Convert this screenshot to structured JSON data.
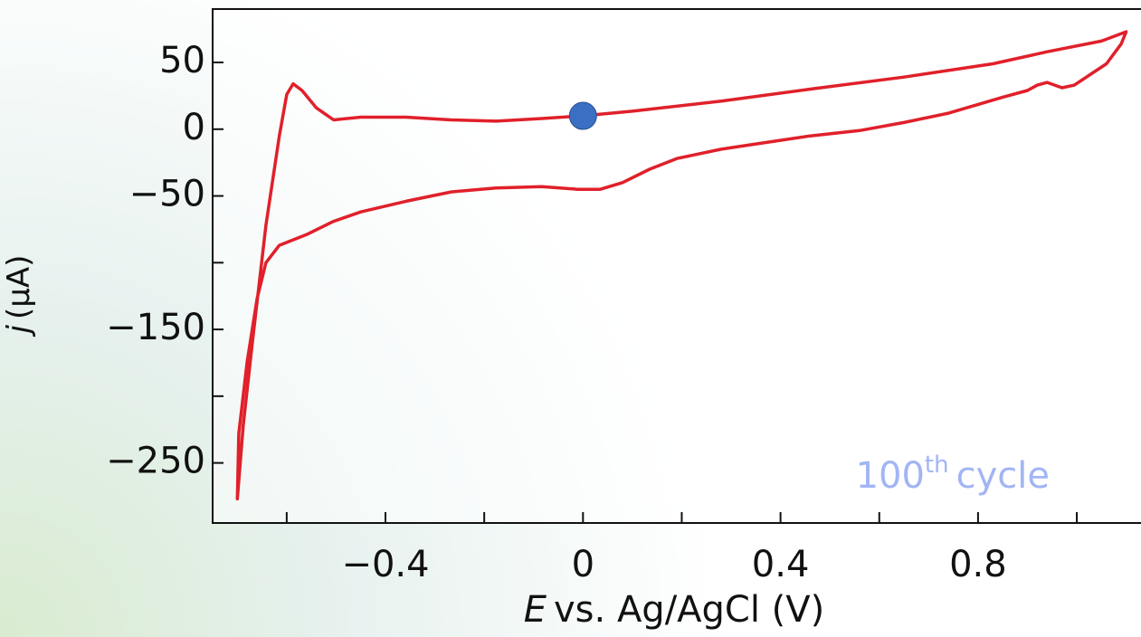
{
  "chart_data": {
    "type": "line",
    "xlabel": {
      "symbol": "E",
      "text": "vs. Ag/AgCl  (V)"
    },
    "ylabel": {
      "symbol": "j",
      "text": "(μA)"
    },
    "annotation": {
      "main": "100",
      "sup": "th",
      "text": "cycle",
      "color": "#2f5ce6"
    },
    "color": "#e0202a",
    "marker": {
      "x": 0,
      "y": 10,
      "color": "#3a6fc4"
    },
    "x": [
      0,
      0.1,
      0.28,
      0.46,
      0.65,
      0.83,
      0.94,
      1.05,
      1.1,
      1.09,
      1.06,
      0.995,
      0.97,
      0.94,
      0.92,
      0.9,
      0.85,
      0.74,
      0.65,
      0.56,
      0.46,
      0.37,
      0.28,
      0.19,
      0.135,
      0.08,
      0.035,
      -0.011,
      -0.084,
      -0.176,
      -0.267,
      -0.358,
      -0.45,
      -0.505,
      -0.56,
      -0.615,
      -0.642,
      -0.66,
      -0.68,
      -0.697,
      -0.7,
      -0.688,
      -0.67,
      -0.642,
      -0.615,
      -0.6,
      -0.587,
      -0.569,
      -0.54,
      -0.505,
      -0.45,
      -0.358,
      -0.267,
      -0.176,
      -0.084,
      0
    ],
    "values": [
      10,
      13.5,
      21,
      30,
      39,
      49,
      58,
      66,
      73,
      64,
      49,
      33,
      31,
      35,
      33,
      29,
      24,
      12,
      5,
      -1,
      -5,
      -10,
      -15,
      -22,
      -30,
      -40,
      -45,
      -45,
      -43,
      -44,
      -47,
      -54,
      -62,
      -69,
      -79,
      -87,
      -100,
      -127,
      -174,
      -228,
      -277,
      -222,
      -161,
      -72,
      -5,
      26,
      34,
      29,
      16,
      7,
      9,
      9,
      7,
      6,
      8,
      10
    ],
    "xlim": [
      -0.75,
      1.13
    ],
    "ylim": [
      -295,
      90
    ],
    "xticks": [
      {
        "value": -0.6,
        "label": null
      },
      {
        "value": -0.4,
        "label": "−0.4"
      },
      {
        "value": -0.2,
        "label": null
      },
      0,
      {
        "value": 0.2,
        "label": null
      },
      0.4,
      {
        "value": 0.6,
        "label": null
      },
      0.8,
      {
        "value": 1.0,
        "label": null
      }
    ],
    "yticks": [
      50,
      0,
      {
        "value": -50,
        "label": "−50"
      },
      {
        "value": -100,
        "label": null
      },
      {
        "value": -150,
        "label": "−150"
      },
      {
        "value": -200,
        "label": null
      },
      {
        "value": -250,
        "label": "−250"
      }
    ]
  }
}
